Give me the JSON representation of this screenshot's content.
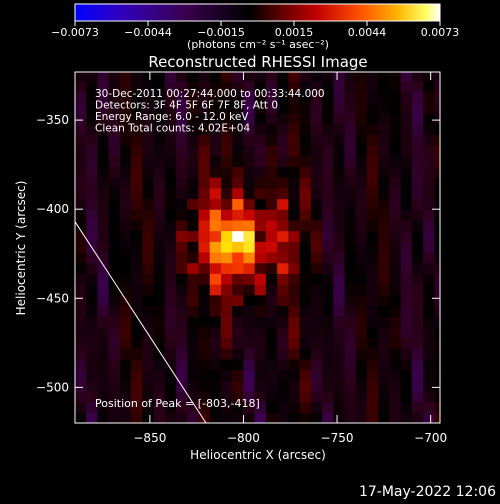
{
  "chart_data": {
    "type": "heatmap",
    "title": "Reconstructed RHESSI Image",
    "xlabel": "Heliocentric X (arcsec)",
    "ylabel": "Heliocentric Y (arcsec)",
    "xlim": [
      -890,
      -695
    ],
    "ylim": [
      -520,
      -323
    ],
    "x_ticks": [
      -850,
      -800,
      -750,
      -700
    ],
    "y_ticks": [
      -350,
      -400,
      -450,
      -500
    ],
    "x_tick_labels": [
      "−850",
      "−800",
      "−750",
      "−700"
    ],
    "y_tick_labels": [
      "−350",
      "−400",
      "−450",
      "−500"
    ],
    "annotations": [
      "30-Dec-2011 00:27:44.000 to 00:33:44.000",
      "Detectors: 3F 4F 5F 6F 7F 8F, Att 0",
      "Energy Range: 6.0 - 12.0 keV",
      "Clean     Total counts: 4.02E+04"
    ],
    "peak_label": "Position of Peak = [-803,-418]",
    "peak": {
      "x": -803,
      "y": -418
    },
    "colorbar": {
      "min": -0.0073,
      "max": 0.0073,
      "tick_labels": [
        "−0.0073",
        "−0.0044",
        "−0.0015",
        "0.0015",
        "0.0044",
        "0.0073"
      ],
      "unit_label": "(photons cm⁻² s⁻¹ asec⁻²)"
    },
    "limb_line": [
      [
        -890,
        -407
      ],
      [
        -820,
        -520
      ]
    ],
    "grid": false,
    "colormap": [
      "#0000ff",
      "#2a00b0",
      "#400060",
      "#2a0018",
      "#000000",
      "#5a0000",
      "#c00000",
      "#ff4000",
      "#ff9a00",
      "#ffe000",
      "#ffffff"
    ]
  },
  "footer": {
    "timestamp": "17-May-2022 12:06"
  }
}
